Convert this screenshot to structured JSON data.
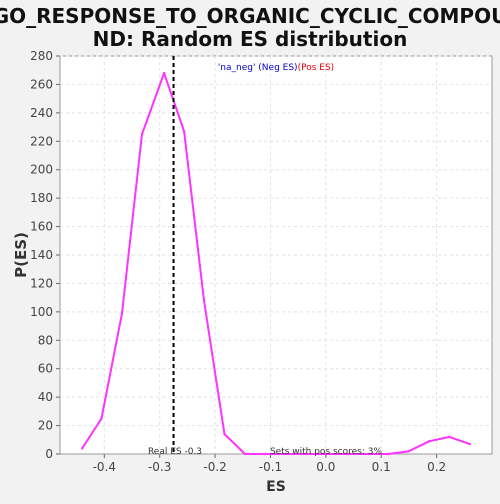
{
  "chart_data": {
    "type": "line",
    "title_lines": [
      "GO_RESPONSE_TO_ORGANIC_CYCLIC_COMPOU",
      "ND: Random ES distribution"
    ],
    "xlabel": "ES",
    "ylabel": "P(ES)",
    "xlim": [
      -0.48,
      0.3
    ],
    "ylim": [
      0,
      280
    ],
    "x_ticks": [
      -0.4,
      -0.3,
      -0.2,
      -0.1,
      0.0,
      0.1,
      0.2
    ],
    "x_tick_labels": [
      "-0.4",
      "-0.3",
      "-0.2",
      "-0.1",
      "0.0",
      "0.1",
      "0.2"
    ],
    "y_ticks": [
      0,
      20,
      40,
      60,
      80,
      100,
      120,
      140,
      160,
      180,
      200,
      220,
      240,
      260,
      280
    ],
    "y_tick_labels": [
      "0",
      "20",
      "40",
      "60",
      "80",
      "100",
      "120",
      "140",
      "160",
      "180",
      "200",
      "220",
      "240",
      "260",
      "280"
    ],
    "grid": true,
    "series": [
      {
        "color": "#ff33ff",
        "x": [
          -0.44,
          -0.405,
          -0.368,
          -0.332,
          -0.292,
          -0.256,
          -0.22,
          -0.183,
          -0.146,
          -0.11,
          -0.073,
          -0.036,
          0.0,
          0.04,
          0.077,
          0.113,
          0.15,
          0.187,
          0.223,
          0.26
        ],
        "y": [
          4,
          25,
          99,
          225,
          268,
          227,
          108,
          14,
          0,
          0,
          0,
          0,
          0,
          0,
          0,
          0,
          2,
          9,
          12,
          7
        ]
      }
    ],
    "real_es": {
      "value": -0.275,
      "label": "Real ES -0.3"
    },
    "annotation": "Sets with pos scores: 3%",
    "legend": {
      "position": "top-center",
      "parts": [
        {
          "text": "'na_neg'",
          "color": "#0000cc"
        },
        {
          "text": " (Neg ES)",
          "color": "#0000cc"
        },
        {
          "text": "(Pos ES)",
          "color": "#dd0000"
        }
      ]
    }
  }
}
